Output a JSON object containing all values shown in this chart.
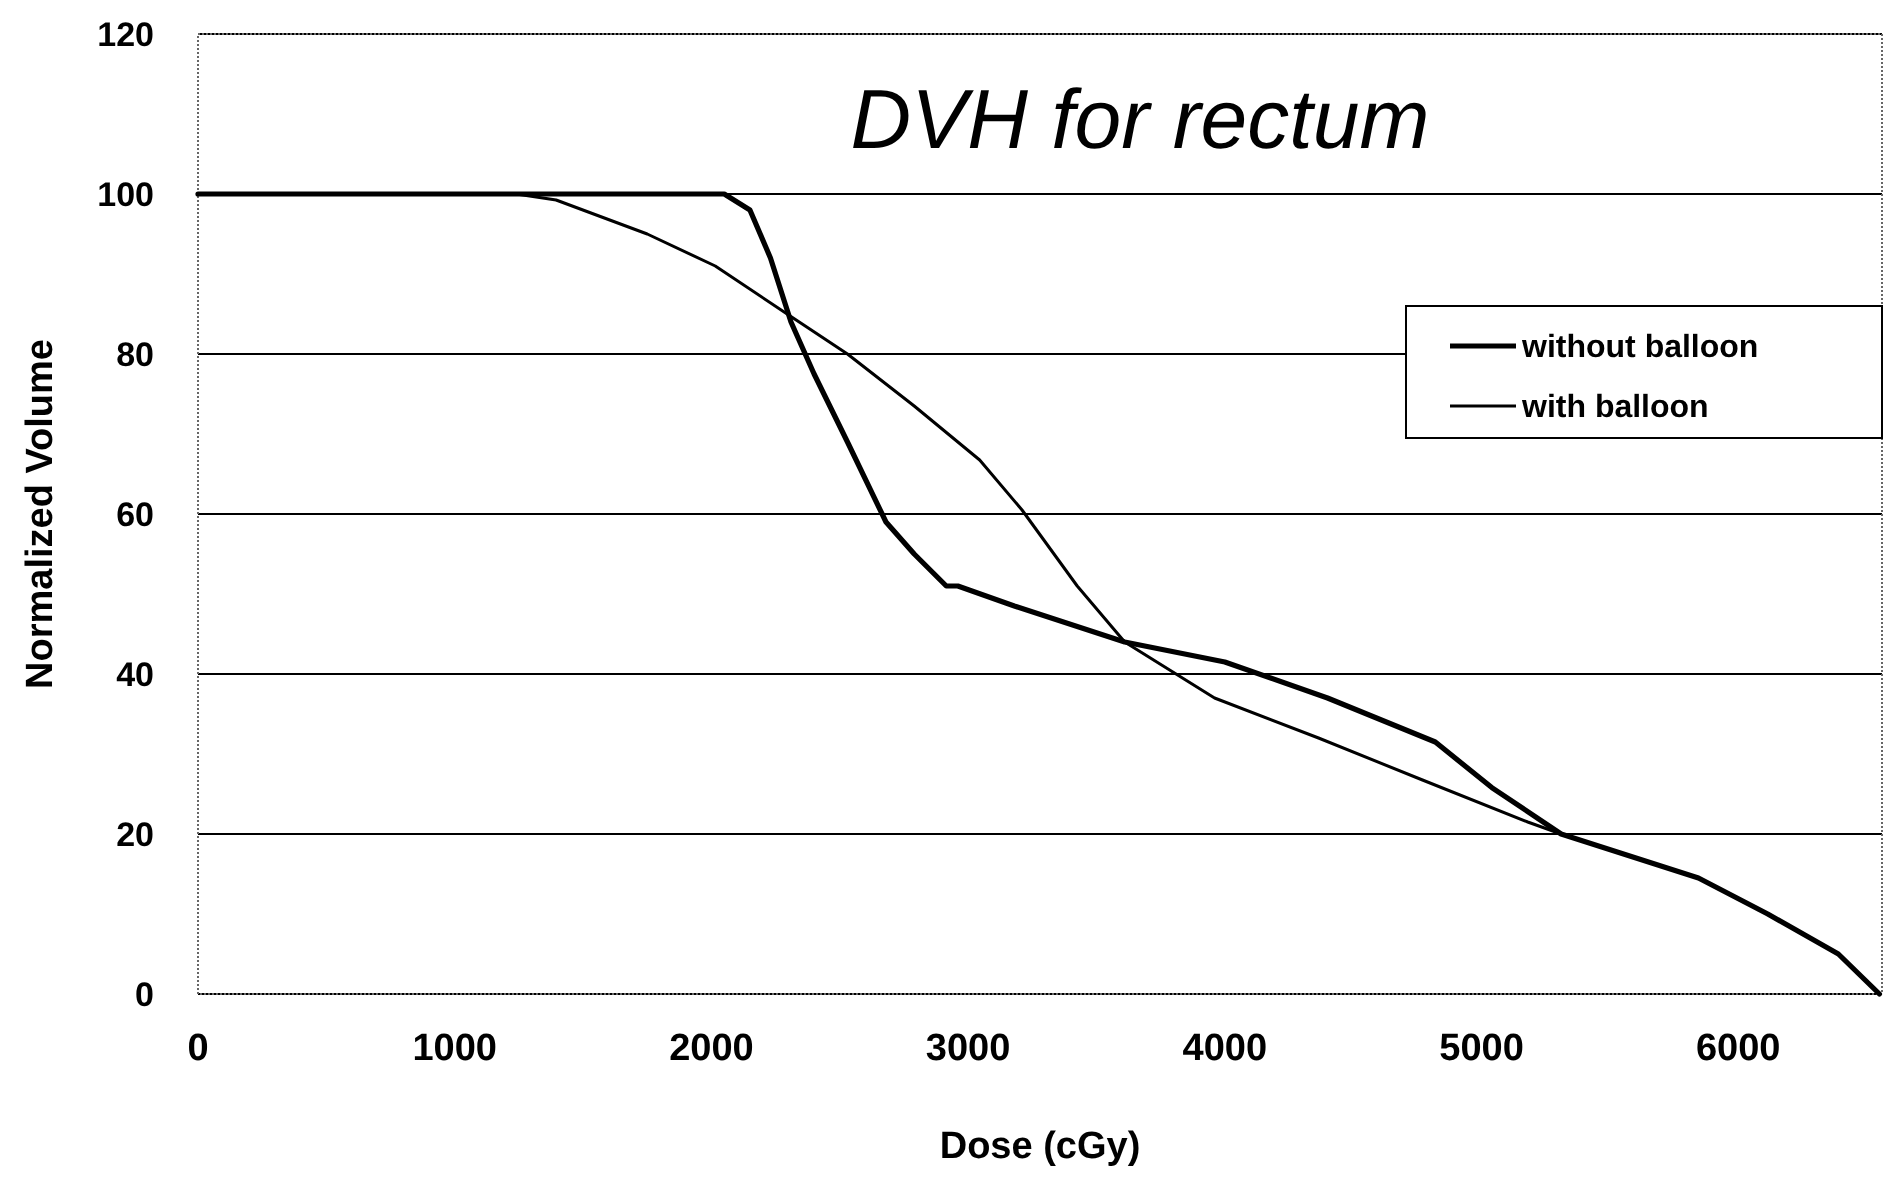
{
  "chart_data": {
    "type": "line",
    "title": "DVH for rectum",
    "xlabel": "Dose (cGy)",
    "ylabel": "Normalized Volume",
    "xlim": [
      0,
      6560
    ],
    "ylim": [
      0,
      120
    ],
    "xticks": [
      0,
      1000,
      2000,
      3000,
      4000,
      5000,
      6000
    ],
    "yticks": [
      0,
      20,
      40,
      60,
      80,
      100,
      120
    ],
    "grid": "y",
    "legend": "top right",
    "marker": "none",
    "line_style": "solid",
    "series": [
      {
        "name": "without balloon",
        "color": "#000000",
        "x": [
          0,
          1000,
          2050,
          2150,
          2230,
          2310,
          2400,
          2530,
          2680,
          2790,
          2915,
          2960,
          3180,
          3610,
          4000,
          4400,
          4820,
          5040,
          5310,
          5845,
          6115,
          6390,
          6550
        ],
        "values": [
          100,
          100,
          100,
          98,
          92,
          84,
          77.5,
          69,
          59,
          55,
          51,
          51,
          48.5,
          44,
          41.5,
          37,
          31.5,
          25.8,
          20,
          14.5,
          10,
          5,
          0
        ]
      },
      {
        "name": "with balloon",
        "color": "#000000",
        "x": [
          0,
          1000,
          1240,
          1395,
          1750,
          2015,
          2295,
          2530,
          2790,
          3045,
          3210,
          3425,
          3610,
          3960,
          4365,
          4770,
          5180,
          5310,
          5845,
          6115,
          6390,
          6550
        ],
        "values": [
          100,
          100,
          100,
          99.25,
          95,
          91,
          85,
          80,
          73.5,
          66.75,
          60.5,
          51,
          44,
          37,
          32,
          26.75,
          21.5,
          20,
          14.5,
          10,
          5,
          0
        ]
      }
    ]
  }
}
